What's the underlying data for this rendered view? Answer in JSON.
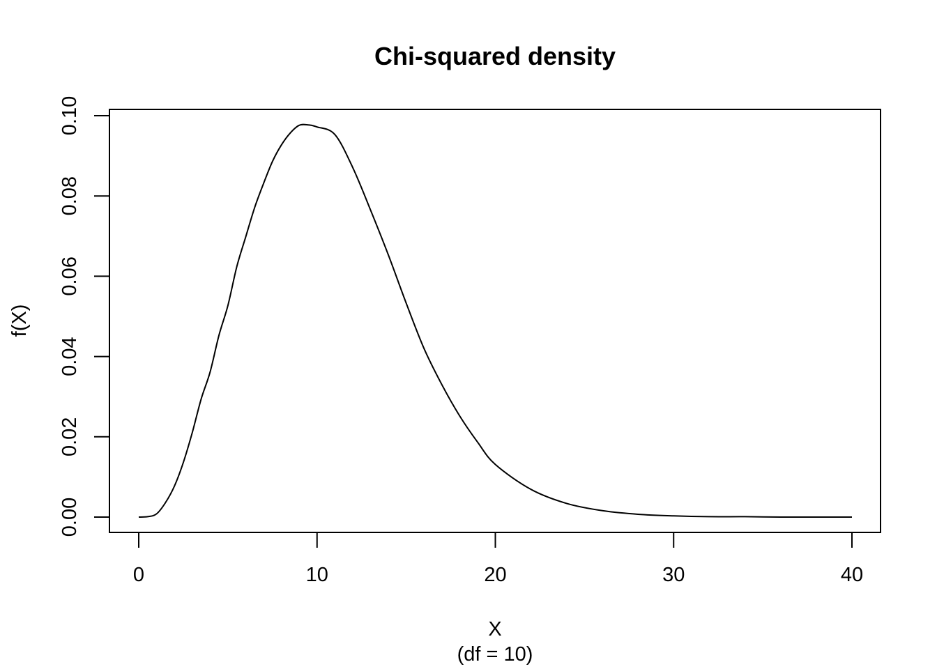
{
  "chart_data": {
    "type": "line",
    "title": "Chi-squared density",
    "xlabel": "X",
    "xlabel_sub": "(df = 10)",
    "ylabel": "f(X)",
    "xlim": [
      0,
      40
    ],
    "ylim": [
      0,
      0.1
    ],
    "x_ticks": [
      0,
      10,
      20,
      30,
      40
    ],
    "x_tick_labels": [
      "0",
      "10",
      "20",
      "30",
      "40"
    ],
    "y_ticks": [
      0,
      0.02,
      0.04,
      0.06,
      0.08,
      0.1
    ],
    "y_tick_labels": [
      "0.00",
      "0.02",
      "0.04",
      "0.06",
      "0.08",
      "0.10"
    ],
    "grid": false,
    "line_color": "#000000",
    "series": [
      {
        "x": [
          0,
          0.5,
          1,
          1.5,
          2,
          2.5,
          3,
          3.5,
          4,
          4.5,
          5,
          5.5,
          6,
          6.5,
          7,
          7.5,
          8,
          8.5,
          9,
          9.5,
          10,
          11,
          12,
          13,
          14,
          15,
          16,
          17,
          18,
          19,
          20,
          22,
          24,
          26,
          28,
          30,
          32,
          34,
          36,
          38,
          40
        ],
        "y": [
          0,
          0.0001,
          0.0008,
          0.0036,
          0.0077,
          0.0136,
          0.021,
          0.0294,
          0.0361,
          0.0453,
          0.0527,
          0.0624,
          0.0698,
          0.0771,
          0.0831,
          0.0886,
          0.0927,
          0.0957,
          0.0976,
          0.0977,
          0.0972,
          0.0953,
          0.0871,
          0.0765,
          0.0653,
          0.0533,
          0.042,
          0.033,
          0.0252,
          0.0187,
          0.0131,
          0.0069,
          0.0034,
          0.0016,
          0.0007,
          0.0003,
          0.0001,
          0.0001,
          0,
          0,
          0
        ]
      }
    ]
  }
}
